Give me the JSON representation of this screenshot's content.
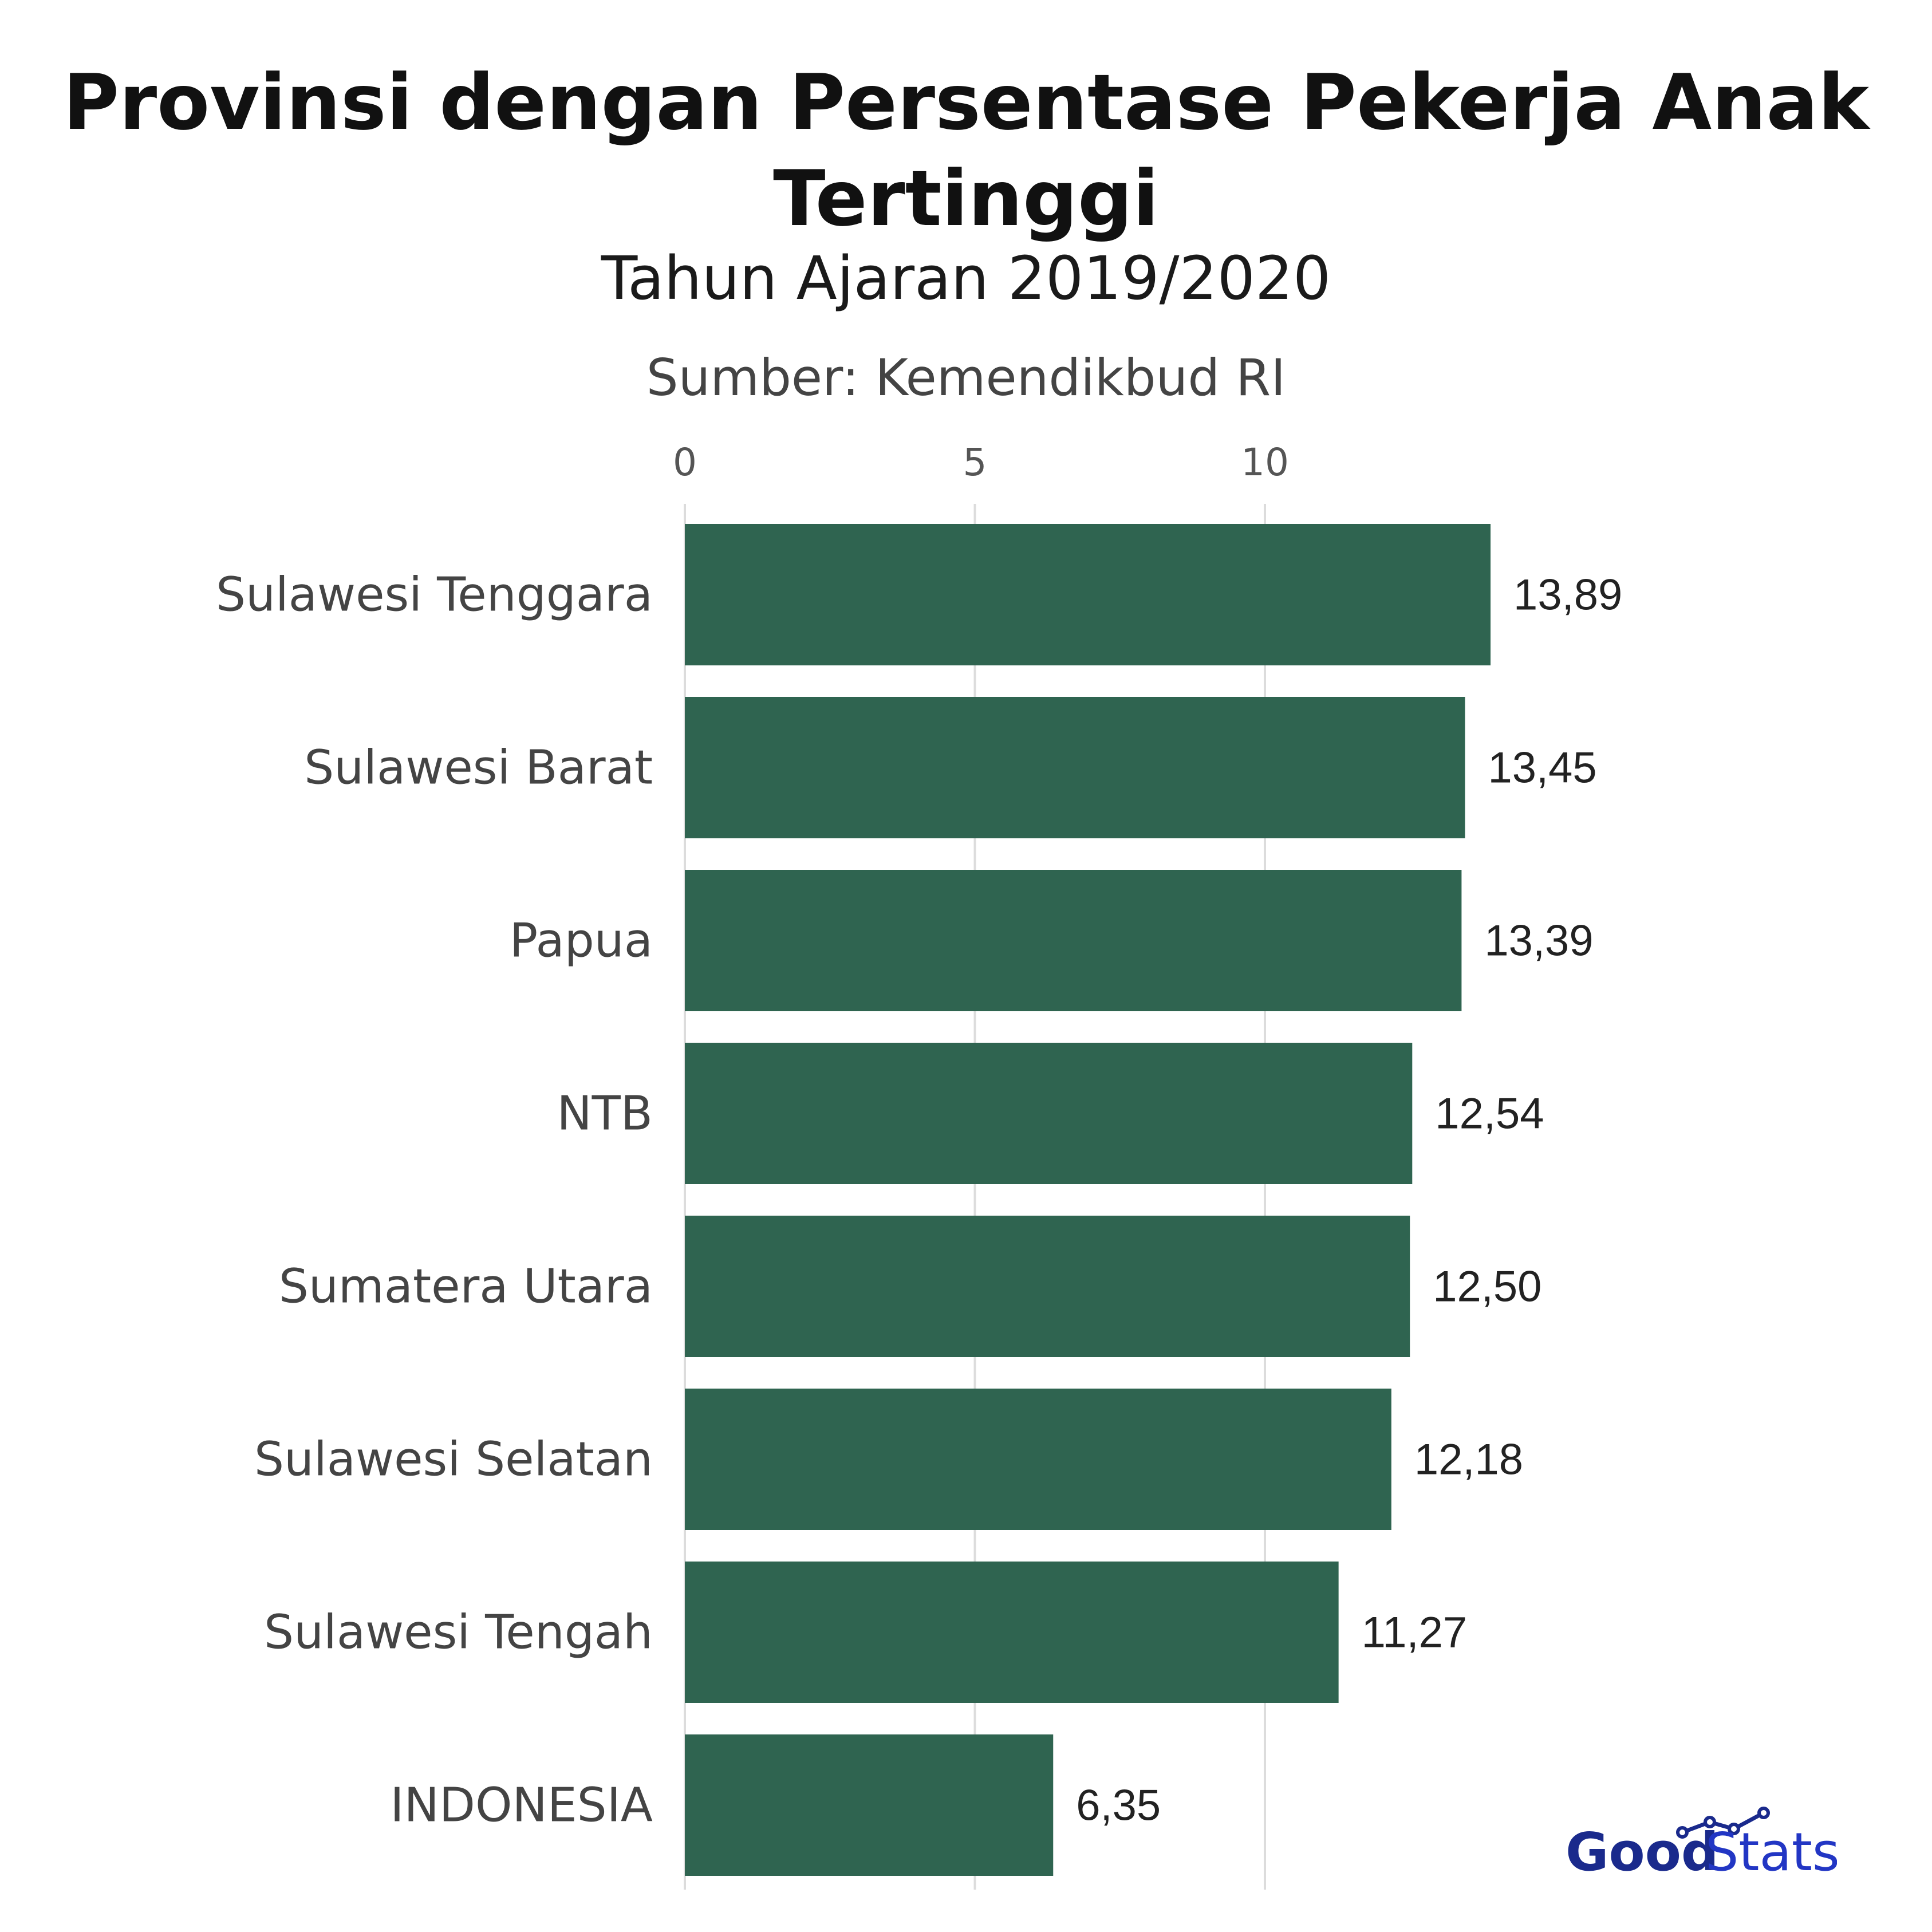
{
  "header": {
    "title_line1": "Provinsi dengan Persentase Pekerja Anak",
    "title_line2": "Tertinggi",
    "subtitle": "Tahun Ajaran 2019/2020",
    "source": "Sumber: Kemendikbud RI"
  },
  "logo": {
    "part1": "Good",
    "part2": "Stats"
  },
  "chart_data": {
    "type": "bar",
    "orientation": "horizontal",
    "title": "Provinsi dengan Persentase Pekerja Anak Tertinggi",
    "subtitle": "Tahun Ajaran 2019/2020",
    "xlabel": "",
    "ylabel": "",
    "xlim": [
      0,
      14.2
    ],
    "x_ticks": [
      "0",
      "5",
      "10"
    ],
    "x_tick_values": [
      0,
      5,
      10
    ],
    "axis_position": "top",
    "grid": true,
    "bar_color": "#2f6450",
    "categories": [
      "Sulawesi Tenggara",
      "Sulawesi Barat",
      "Papua",
      "NTB",
      "Sumatera Utara",
      "Sulawesi Selatan",
      "Sulawesi Tengah",
      "INDONESIA"
    ],
    "values": [
      13.89,
      13.45,
      13.39,
      12.54,
      12.5,
      12.18,
      11.27,
      6.35
    ],
    "value_labels": [
      "13,89",
      "13,45",
      "13,39",
      "12,54",
      "12,50",
      "12,18",
      "11,27",
      "6,35"
    ]
  }
}
